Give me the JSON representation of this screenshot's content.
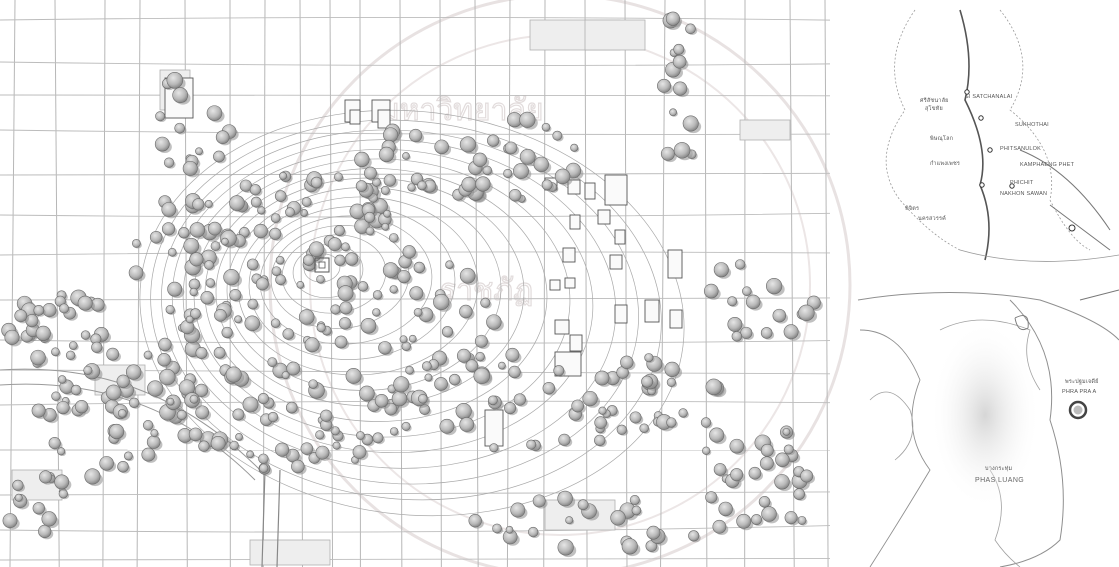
{
  "site_plan": {
    "name": "site-plan",
    "description_elements": [
      "contour-lines",
      "field-grid",
      "tree-canopies",
      "building-footprints",
      "central-shrine"
    ]
  },
  "inset_top": {
    "name": "regional-locator-map",
    "labels": [
      {
        "id": "lbl-si-satchanalai-th",
        "text": "ศรีสัชนาลัย"
      },
      {
        "id": "lbl-si-satchanalai-en",
        "text": "SI SATCHANALAI"
      },
      {
        "id": "lbl-sukhothai-th",
        "text": "สุโขทัย"
      },
      {
        "id": "lbl-sukhothai-en",
        "text": "SUKHOTHAI"
      },
      {
        "id": "lbl-phitsanulok-th",
        "text": "พิษณุโลก"
      },
      {
        "id": "lbl-phitsanulok-en",
        "text": "PHITSANULOK"
      },
      {
        "id": "lbl-kamphaeng-th",
        "text": "กำแพงเพชร"
      },
      {
        "id": "lbl-kamphaeng-en",
        "text": "KAMPHAENG PHET"
      },
      {
        "id": "lbl-phichit-th",
        "text": "พิจิตร"
      },
      {
        "id": "lbl-phichit-en",
        "text": "PHICHIT"
      },
      {
        "id": "lbl-nakhon-th",
        "text": "นครสวรรค์"
      },
      {
        "id": "lbl-nakhon-en",
        "text": "NAKHON SAWAN"
      }
    ]
  },
  "inset_bottom": {
    "name": "local-locator-map",
    "site_label_th": "พระปฐมเจดีย์",
    "site_label_en": "PHRA PRA A",
    "district_label_th": "บางกระทุ่ม",
    "district_label_en": "PHAS LUANG"
  },
  "colors": {
    "ink": "#8c8c8c",
    "ink_dark": "#555555",
    "tree_fill": "#bdbdbd",
    "tree_shadow": "#8a8a8a",
    "grid_line": "#b5b5b5",
    "contour": "#a9a9a9",
    "highlight_field": "#ececec",
    "watermark": "#e2dcdc"
  }
}
